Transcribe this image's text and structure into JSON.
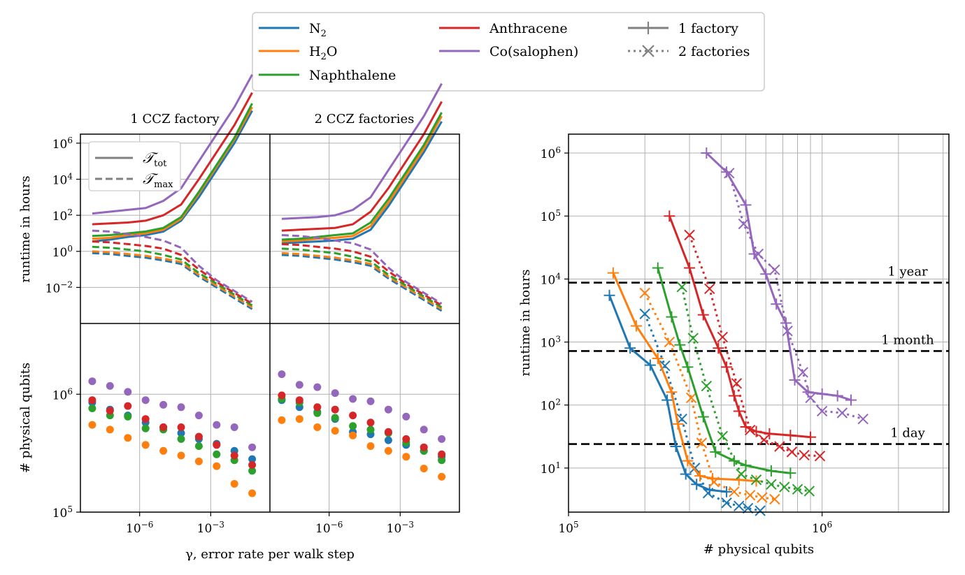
{
  "colors": {
    "N2": "#1f77b4",
    "H2O": "#ff7f0e",
    "Naphthalene": "#2ca02c",
    "Anthracene": "#d62728",
    "Cosalophen": "#9467bd",
    "factory": "#808080"
  },
  "legend": {
    "molecules": [
      {
        "key": "N2",
        "main": "N",
        "sub": "2",
        "tail": ""
      },
      {
        "key": "H2O",
        "main": "H",
        "sub": "2",
        "tail": "O"
      },
      {
        "key": "Naphthalene",
        "main": "Naphthalene",
        "sub": "",
        "tail": ""
      },
      {
        "key": "Anthracene",
        "main": "Anthracene",
        "sub": "",
        "tail": ""
      },
      {
        "key": "Cosalophen",
        "main": "Co(salophen)",
        "sub": "",
        "tail": ""
      }
    ],
    "factories": [
      {
        "label": "1 factory",
        "style": "solid",
        "marker": "+"
      },
      {
        "label": "2 factories",
        "style": "dotted",
        "marker": "x"
      }
    ]
  },
  "inner_legend": [
    {
      "main": "𝒯",
      "sub": "tot",
      "style": "solid"
    },
    {
      "main": "𝒯",
      "sub": "max",
      "style": "dashed"
    }
  ],
  "chart_data": [
    {
      "id": "left",
      "type": "line",
      "panels": [
        "1 CCZ factory",
        "2 CCZ factories"
      ],
      "xlabel": "γ, error rate per walk step",
      "xscale": "log",
      "xlim_log10": [
        -8.5,
        -0.5
      ],
      "xticks": [
        {
          "v": -6,
          "base": "10",
          "exp": "−6"
        },
        {
          "v": -3,
          "base": "10",
          "exp": "−3"
        }
      ],
      "top_ylabel": "runtime in hours",
      "top_ylim_log10": [
        -4,
        6.5
      ],
      "top_yticks": [
        {
          "v": 6,
          "base": "10",
          "exp": "6"
        },
        {
          "v": 4,
          "base": "10",
          "exp": "4"
        },
        {
          "v": 2,
          "base": "10",
          "exp": "2"
        },
        {
          "v": 0,
          "base": "10",
          "exp": "0"
        },
        {
          "v": -2,
          "base": "10",
          "exp": "−2"
        }
      ],
      "bottom_ylabel": "# physical qubits",
      "bottom_ylim_log10": [
        5,
        6.6
      ],
      "bottom_yticks": [
        {
          "v": 6,
          "base": "10",
          "exp": "6"
        },
        {
          "v": 5,
          "base": "10",
          "exp": "5"
        }
      ],
      "x_log10": [
        -8,
        -7.25,
        -6.5,
        -5.75,
        -5,
        -4.25,
        -3.5,
        -2.75,
        -2,
        -1.25
      ],
      "tot": {
        "N2": [
          [
            0.55,
            0.65,
            0.8,
            0.9,
            1.1,
            1.7,
            3.0,
            4.5,
            6.0,
            7.8
          ],
          [
            0.45,
            0.5,
            0.55,
            0.6,
            0.7,
            1.2,
            2.5,
            4.0,
            5.5,
            7.2
          ]
        ],
        "H2O": [
          [
            0.7,
            0.75,
            0.9,
            1.0,
            1.2,
            1.8,
            3.2,
            4.7,
            6.2,
            8.0
          ],
          [
            0.55,
            0.6,
            0.7,
            0.75,
            0.85,
            1.4,
            2.7,
            4.2,
            5.7,
            7.5
          ]
        ],
        "Naphthalene": [
          [
            0.85,
            0.9,
            1.0,
            1.1,
            1.3,
            1.9,
            3.3,
            4.8,
            6.3,
            8.2
          ],
          [
            0.65,
            0.7,
            0.8,
            0.9,
            1.0,
            1.6,
            2.9,
            4.4,
            5.9,
            7.7
          ]
        ],
        "Anthracene": [
          [
            1.5,
            1.55,
            1.6,
            1.7,
            2.0,
            2.6,
            4.0,
            5.5,
            7.0,
            8.8
          ],
          [
            1.15,
            1.2,
            1.25,
            1.3,
            1.5,
            2.2,
            3.5,
            5.0,
            6.5,
            8.3
          ]
        ],
        "Cosalophen": [
          [
            2.1,
            2.2,
            2.3,
            2.4,
            2.8,
            3.5,
            5.0,
            6.5,
            8.0,
            9.8
          ],
          [
            1.8,
            1.85,
            1.9,
            2.0,
            2.3,
            3.0,
            4.5,
            6.0,
            7.5,
            9.3
          ]
        ]
      },
      "max": {
        "N2": [
          [
            -0.1,
            -0.15,
            -0.25,
            -0.35,
            -0.5,
            -0.7,
            -1.4,
            -2.0,
            -2.6,
            -3.2
          ],
          [
            -0.2,
            -0.25,
            -0.35,
            -0.45,
            -0.6,
            -0.8,
            -1.5,
            -2.1,
            -2.7,
            -3.3
          ]
        ],
        "H2O": [
          [
            0.0,
            -0.05,
            -0.15,
            -0.25,
            -0.4,
            -0.6,
            -1.3,
            -1.9,
            -2.5,
            -3.1
          ],
          [
            -0.1,
            -0.15,
            -0.25,
            -0.35,
            -0.5,
            -0.7,
            -1.4,
            -2.0,
            -2.6,
            -3.2
          ]
        ],
        "Naphthalene": [
          [
            0.25,
            0.2,
            0.1,
            0.0,
            -0.2,
            -0.45,
            -1.2,
            -1.8,
            -2.4,
            -3.0
          ],
          [
            0.15,
            0.1,
            0.0,
            -0.1,
            -0.3,
            -0.55,
            -1.3,
            -1.9,
            -2.5,
            -3.1
          ]
        ],
        "Anthracene": [
          [
            0.55,
            0.5,
            0.4,
            0.3,
            0.15,
            -0.2,
            -1.0,
            -1.7,
            -2.3,
            -2.9
          ],
          [
            0.4,
            0.35,
            0.25,
            0.15,
            0.0,
            -0.3,
            -1.1,
            -1.8,
            -2.4,
            -3.0
          ]
        ],
        "Cosalophen": [
          [
            1.15,
            1.1,
            0.95,
            0.8,
            0.6,
            0.2,
            -0.8,
            -1.6,
            -2.2,
            -2.8
          ],
          [
            0.9,
            0.85,
            0.75,
            0.6,
            0.45,
            0.1,
            -0.9,
            -1.7,
            -2.3,
            -2.9
          ]
        ]
      },
      "qubits": {
        "N2": [
          [
            5.93,
            5.87,
            5.82,
            5.76,
            5.72,
            5.67,
            5.62,
            5.58,
            5.52,
            5.45
          ],
          [
            5.95,
            5.89,
            5.85,
            5.79,
            5.68,
            5.66,
            5.61,
            5.57,
            5.52,
            5.47
          ]
        ],
        "H2O": [
          [
            5.74,
            5.7,
            5.63,
            5.57,
            5.52,
            5.48,
            5.43,
            5.39,
            5.24,
            5.16
          ],
          [
            5.78,
            5.79,
            5.72,
            5.69,
            5.65,
            5.56,
            5.52,
            5.47,
            5.37,
            5.3
          ]
        ],
        "Naphthalene": [
          [
            5.88,
            5.82,
            5.81,
            5.71,
            5.7,
            5.62,
            5.56,
            5.49,
            5.44,
            5.35
          ],
          [
            5.96,
            5.93,
            5.84,
            5.8,
            5.73,
            5.7,
            5.67,
            5.59,
            5.52,
            5.44
          ]
        ],
        "Anthracene": [
          [
            5.95,
            5.86,
            5.9,
            5.79,
            5.72,
            5.72,
            5.64,
            5.57,
            5.48,
            5.4
          ],
          [
            5.99,
            5.95,
            5.89,
            5.87,
            5.82,
            5.76,
            5.68,
            5.62,
            5.55,
            5.49
          ]
        ],
        "Cosalophen": [
          [
            6.11,
            6.07,
            6.02,
            5.95,
            5.91,
            5.89,
            5.82,
            5.74,
            5.72,
            5.55
          ],
          [
            6.17,
            6.08,
            6.06,
            6.01,
            5.96,
            5.94,
            5.87,
            5.81,
            5.7,
            5.62
          ]
        ]
      }
    },
    {
      "id": "right",
      "type": "line",
      "xlabel": "# physical qubits",
      "ylabel": "runtime in hours",
      "xscale": "log",
      "yscale": "log",
      "xlim_log10": [
        5,
        6.5
      ],
      "ylim_log10": [
        0.3,
        6.3
      ],
      "xticks": [
        {
          "v": 5,
          "base": "10",
          "exp": "5"
        },
        {
          "v": 6,
          "base": "10",
          "exp": "6"
        }
      ],
      "yticks": [
        {
          "v": 6,
          "base": "10",
          "exp": "6"
        },
        {
          "v": 5,
          "base": "10",
          "exp": "5"
        },
        {
          "v": 4,
          "base": "10",
          "exp": "4"
        },
        {
          "v": 3,
          "base": "10",
          "exp": "3"
        },
        {
          "v": 2,
          "base": "10",
          "exp": "2"
        },
        {
          "v": 1,
          "base": "10",
          "exp": "1"
        }
      ],
      "hlines": [
        {
          "label": "1 year",
          "hours": 8760
        },
        {
          "label": "1 month",
          "hours": 720
        },
        {
          "label": "1 day",
          "hours": 24
        }
      ],
      "series": [
        {
          "key": "N2",
          "factories": 1,
          "points": [
            [
              145000.0,
              5500
            ],
            [
              175000.0,
              800
            ],
            [
              210000.0,
              430
            ],
            [
              245000.0,
              120
            ],
            [
              265000.0,
              22
            ],
            [
              290000.0,
              8
            ],
            [
              320000.0,
              5.5
            ],
            [
              360000.0,
              4.5
            ],
            [
              420000.0,
              4.2
            ]
          ]
        },
        {
          "key": "N2",
          "factories": 2,
          "points": [
            [
              200000.0,
              2800
            ],
            [
              240000.0,
              420
            ],
            [
              280000.0,
              60
            ],
            [
              315000.0,
              10
            ],
            [
              355000.0,
              4
            ],
            [
              420000.0,
              2.8
            ],
            [
              470000.0,
              2.5
            ],
            [
              510000.0,
              2.3
            ],
            [
              570000.0,
              2.1
            ]
          ]
        },
        {
          "key": "H2O",
          "factories": 1,
          "points": [
            [
              150000.0,
              12500
            ],
            [
              185000.0,
              1800
            ],
            [
              225000.0,
              550
            ],
            [
              255000.0,
              160
            ],
            [
              270000.0,
              50
            ],
            [
              295000.0,
              13
            ],
            [
              330000.0,
              7.5
            ],
            [
              370000.0,
              6.8
            ],
            [
              470000.0,
              6.5
            ],
            [
              550000.0,
              6.2
            ]
          ]
        },
        {
          "key": "H2O",
          "factories": 2,
          "points": [
            [
              200000.0,
              6000
            ],
            [
              250000.0,
              1000
            ],
            [
              305000.0,
              130
            ],
            [
              335000.0,
              25
            ],
            [
              375000.0,
              6
            ],
            [
              450000.0,
              4.2
            ],
            [
              520000.0,
              3.7
            ],
            [
              580000.0,
              3.4
            ],
            [
              650000.0,
              3.2
            ]
          ]
        },
        {
          "key": "Naphthalene",
          "factories": 1,
          "points": [
            [
              225000.0,
              15000
            ],
            [
              255000.0,
              2500
            ],
            [
              275000.0,
              900
            ],
            [
              295000.0,
              400
            ],
            [
              340000.0,
              65
            ],
            [
              380000.0,
              18
            ],
            [
              450000.0,
              13
            ],
            [
              500000.0,
              11
            ],
            [
              630000.0,
              9
            ],
            [
              750000.0,
              8.3
            ]
          ]
        },
        {
          "key": "Naphthalene",
          "factories": 2,
          "points": [
            [
              280000.0,
              7500
            ],
            [
              310000.0,
              1150
            ],
            [
              350000.0,
              200
            ],
            [
              405000.0,
              32
            ],
            [
              480000.0,
              8
            ],
            [
              550000.0,
              6.5
            ],
            [
              630000.0,
              5.5
            ],
            [
              710000.0,
              5.0
            ],
            [
              800000.0,
              4.6
            ],
            [
              890000.0,
              4.3
            ]
          ]
        },
        {
          "key": "Anthracene",
          "factories": 1,
          "points": [
            [
              250000.0,
              100000
            ],
            [
              300000.0,
              15000
            ],
            [
              340000.0,
              2700
            ],
            [
              390000.0,
              800
            ],
            [
              420000.0,
              400
            ],
            [
              450000.0,
              140
            ],
            [
              470000.0,
              80
            ],
            [
              500000.0,
              45
            ],
            [
              550000.0,
              38
            ],
            [
              620000.0,
              35
            ],
            [
              750000.0,
              33
            ],
            [
              900000.0,
              31
            ]
          ]
        },
        {
          "key": "Anthracene",
          "factories": 2,
          "points": [
            [
              300000.0,
              50000
            ],
            [
              360000.0,
              7000
            ],
            [
              405000.0,
              1200
            ],
            [
              460000.0,
              220
            ],
            [
              520000.0,
              40
            ],
            [
              590000.0,
              28
            ],
            [
              680000.0,
              22
            ],
            [
              760000.0,
              18
            ],
            [
              850000.0,
              16
            ],
            [
              980000.0,
              15.5
            ]
          ]
        },
        {
          "key": "Cosalophen",
          "factories": 1,
          "points": [
            [
              350000.0,
              1000000
            ],
            [
              420000.0,
              500000
            ],
            [
              500000.0,
              150000
            ],
            [
              540000.0,
              25000
            ],
            [
              600000.0,
              12000
            ],
            [
              660000.0,
              4000
            ],
            [
              720000.0,
              2000
            ],
            [
              780000.0,
              250
            ],
            [
              880000.0,
              160
            ],
            [
              1000000.0,
              150
            ],
            [
              1150000.0,
              140
            ],
            [
              1300000.0,
              120
            ]
          ]
        },
        {
          "key": "Cosalophen",
          "factories": 2,
          "points": [
            [
              430000.0,
              480000
            ],
            [
              490000.0,
              75000
            ],
            [
              560000.0,
              25000
            ],
            [
              650000.0,
              14000
            ],
            [
              730000.0,
              1500
            ],
            [
              840000.0,
              330
            ],
            [
              900000.0,
              130
            ],
            [
              1000000.0,
              80
            ],
            [
              1200000.0,
              75
            ],
            [
              1450000.0,
              60
            ]
          ]
        }
      ]
    }
  ]
}
